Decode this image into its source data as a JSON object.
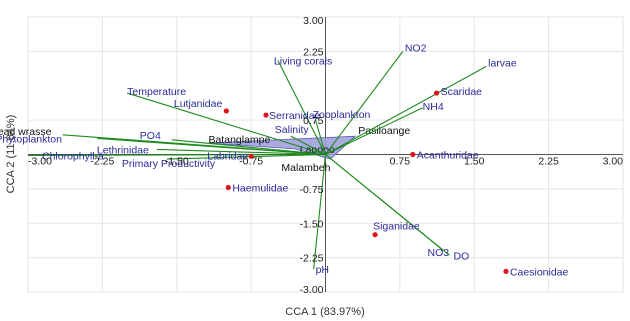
{
  "chart_data": {
    "type": "scatter",
    "xlabel": "CCA 1 (83.97%)",
    "ylabel": "CCA 2 (11.84%)",
    "xlim": [
      -3.0,
      3.0
    ],
    "ylim": [
      -3.0,
      3.0
    ],
    "x_ticks": [
      "-3.00",
      "-2.25",
      "-1.50",
      "-0.75",
      "0.75",
      "1.50",
      "2.25",
      "3.00"
    ],
    "y_ticks": [
      "3.00",
      "2.25",
      "0.75",
      "-0.75",
      "-1.50",
      "-2.25",
      "-3.00"
    ],
    "grid": true,
    "colors": {
      "vectors": "#1e8a1e",
      "species": "#e0141e",
      "sites_fill": "#9b9bdc",
      "labels": "#2a2a9a"
    },
    "vectors": [
      {
        "label": "NO2",
        "x": 0.78,
        "y": 2.25
      },
      {
        "label": "larvae",
        "x": 1.62,
        "y": 1.92
      },
      {
        "label": "Living corals",
        "x": -0.48,
        "y": 2.05
      },
      {
        "label": "Temperature",
        "x": -2.0,
        "y": 1.34
      },
      {
        "label": "NH4",
        "x": 0.98,
        "y": 1.02
      },
      {
        "label": "Zooplankton",
        "x": -0.1,
        "y": 0.75
      },
      {
        "label": "Salinity",
        "x": -0.35,
        "y": 0.4
      },
      {
        "label": "Humhead wrasse",
        "x": -2.65,
        "y": 0.43
      },
      {
        "label": "Phytoplankton",
        "x": -2.3,
        "y": 0.35
      },
      {
        "label": "PO4",
        "x": -1.55,
        "y": 0.32
      },
      {
        "label": "Lethrinidae",
        "x": -1.7,
        "y": 0.11
      },
      {
        "label": "Chlorophyll-a",
        "x": -3.0,
        "y": -0.02
      },
      {
        "label": "Primary Productivity",
        "x": -1.6,
        "y": -0.1
      },
      {
        "label": "pH",
        "x": -0.12,
        "y": -2.5
      },
      {
        "label": "NO3",
        "x": 1.18,
        "y": -2.08
      },
      {
        "label": "DO",
        "x": 1.25,
        "y": -2.2
      }
    ],
    "species": [
      {
        "label": "Scaridae",
        "x": 1.12,
        "y": 1.34
      },
      {
        "label": "Lutjanidae",
        "x": -1.0,
        "y": 0.95
      },
      {
        "label": "Serranidae",
        "x": -0.6,
        "y": 0.86
      },
      {
        "label": "Labridae",
        "x": -0.75,
        "y": -0.04
      },
      {
        "label": "Haemulidae",
        "x": -0.98,
        "y": -0.72
      },
      {
        "label": "Acanthuridae",
        "x": 0.88,
        "y": 0.0
      },
      {
        "label": "Siganidae",
        "x": 0.5,
        "y": -1.75
      },
      {
        "label": "Caesionidae",
        "x": 1.82,
        "y": -2.55
      }
    ],
    "sites": [
      {
        "label": "Batanglampe",
        "x": -1.18,
        "y": 0.25
      },
      {
        "label": "Pasiloange",
        "x": 0.3,
        "y": 0.4
      },
      {
        "label": "Lapopo",
        "x": -0.3,
        "y": 0.12
      },
      {
        "label": "Malambeh",
        "x": 0.05,
        "y": -0.1
      }
    ]
  }
}
